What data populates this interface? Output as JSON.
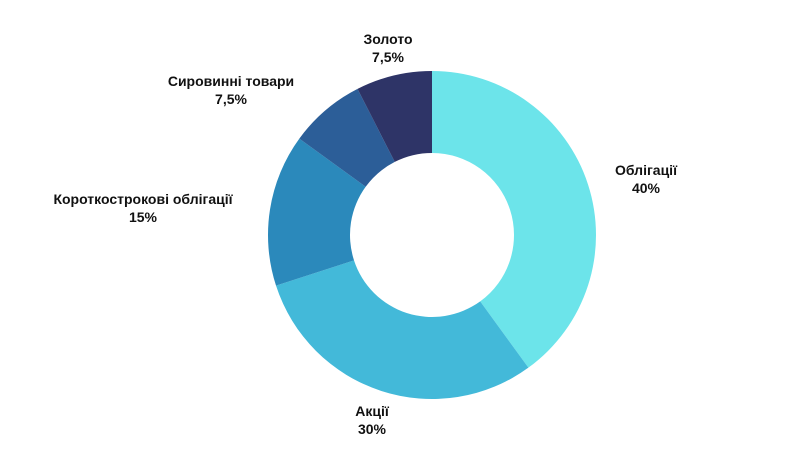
{
  "chart_data": {
    "type": "pie",
    "style": "donut",
    "title": "",
    "slices": [
      {
        "label": "Облігації",
        "value": 40,
        "value_label": "40%",
        "color": "#6ce4ea"
      },
      {
        "label": "Акції",
        "value": 30,
        "value_label": "30%",
        "color": "#43b9d9"
      },
      {
        "label": "Короткострокові облігації",
        "value": 15,
        "value_label": "15%",
        "color": "#2b89bb"
      },
      {
        "label": "Сировинні товари",
        "value": 7.5,
        "value_label": "7,5%",
        "color": "#2c5e98"
      },
      {
        "label": "Золото",
        "value": 7.5,
        "value_label": "7,5%",
        "color": "#2e3467"
      }
    ]
  }
}
